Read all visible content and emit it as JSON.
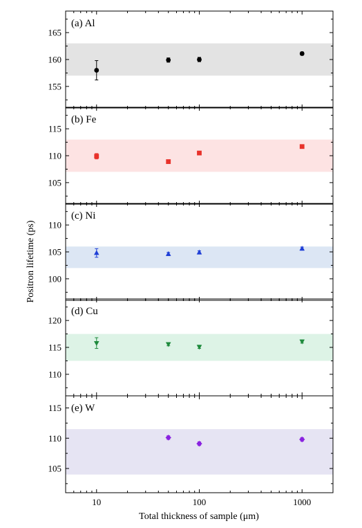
{
  "chart_data": {
    "type": "scatter",
    "xlabel": "Total thickness of sample (μm)",
    "ylabel": "Positron lifetime (ps)",
    "xscale": "log",
    "xlim": [
      5,
      2000
    ],
    "xticks": [
      10,
      100,
      1000
    ],
    "xtick_labels": [
      "10",
      "100",
      "1000"
    ],
    "legend": "none",
    "grid": false,
    "panels": [
      {
        "label": "(a) Al",
        "color": "#000000",
        "band_color": "#e3e3e3",
        "marker": "circle",
        "ylim": [
          151,
          169
        ],
        "yticks": [
          155,
          160,
          165
        ],
        "ytick_labels": [
          "155",
          "160",
          "165"
        ],
        "band": [
          157,
          163
        ],
        "points": [
          {
            "x": 10,
            "y": 158,
            "err": 1.8
          },
          {
            "x": 50,
            "y": 159.9,
            "err": 0.4
          },
          {
            "x": 100,
            "y": 160,
            "err": 0.4
          },
          {
            "x": 1000,
            "y": 161.1,
            "err": 0.3
          }
        ]
      },
      {
        "label": "(b) Fe",
        "color": "#e8322b",
        "band_color": "#fde3e3",
        "marker": "square",
        "ylim": [
          101,
          119
        ],
        "yticks": [
          105,
          110,
          115
        ],
        "ytick_labels": [
          "105",
          "110",
          "115"
        ],
        "band": [
          107,
          113
        ],
        "points": [
          {
            "x": 10,
            "y": 109.9,
            "err": 0.5
          },
          {
            "x": 50,
            "y": 108.9,
            "err": 0.3
          },
          {
            "x": 100,
            "y": 110.5,
            "err": 0.3
          },
          {
            "x": 1000,
            "y": 111.7,
            "err": 0.3
          }
        ]
      },
      {
        "label": "(c) Ni",
        "color": "#1f3fd6",
        "band_color": "#dce6f4",
        "marker": "triangle-up",
        "ylim": [
          96,
          114
        ],
        "yticks": [
          100,
          105,
          110
        ],
        "ytick_labels": [
          "100",
          "105",
          "110"
        ],
        "band": [
          102,
          106
        ],
        "points": [
          {
            "x": 10,
            "y": 104.8,
            "err": 0.8
          },
          {
            "x": 50,
            "y": 104.6,
            "err": 0.3
          },
          {
            "x": 100,
            "y": 104.9,
            "err": 0.3
          },
          {
            "x": 1000,
            "y": 105.6,
            "err": 0.3
          }
        ]
      },
      {
        "label": "(d) Cu",
        "color": "#1e8a3c",
        "band_color": "#ddf3e6",
        "marker": "triangle-down",
        "ylim": [
          106,
          124
        ],
        "yticks": [
          110,
          115,
          120
        ],
        "ytick_labels": [
          "110",
          "115",
          "120"
        ],
        "band": [
          112.5,
          117.5
        ],
        "points": [
          {
            "x": 10,
            "y": 115.8,
            "err": 1.0
          },
          {
            "x": 50,
            "y": 115.6,
            "err": 0.3
          },
          {
            "x": 100,
            "y": 115.1,
            "err": 0.3
          },
          {
            "x": 1000,
            "y": 116.1,
            "err": 0.3
          }
        ]
      },
      {
        "label": "(e) W",
        "color": "#8a22e0",
        "band_color": "#e6e4f3",
        "marker": "diamond",
        "ylim": [
          101,
          117
        ],
        "yticks": [
          105,
          110,
          115
        ],
        "ytick_labels": [
          "105",
          "110",
          "115"
        ],
        "band": [
          104,
          111.5
        ],
        "points": [
          {
            "x": 50,
            "y": 110.1,
            "err": 0.3
          },
          {
            "x": 100,
            "y": 109.1,
            "err": 0.3
          },
          {
            "x": 1000,
            "y": 109.8,
            "err": 0.3
          }
        ]
      }
    ]
  }
}
